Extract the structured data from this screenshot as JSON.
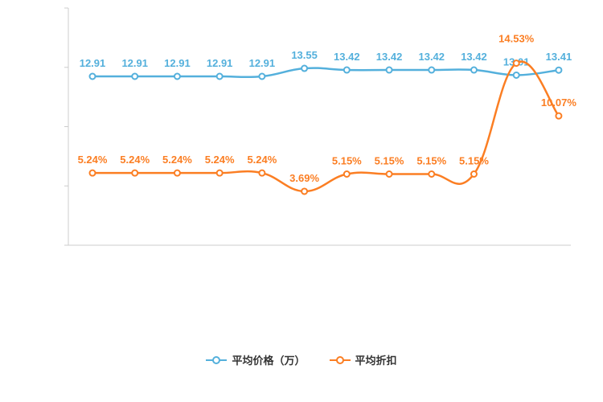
{
  "chart_data": {
    "type": "line",
    "title": "",
    "legend_position": "bottom",
    "grid": false,
    "x_axis_labels_visible": false,
    "axis_color": "#cccccc",
    "legend_text_color": "#333333",
    "series": [
      {
        "name": "平均价格（万）",
        "color": "#54b0dc",
        "marker": "empty-circle",
        "smooth": true,
        "values": [
          12.91,
          12.91,
          12.91,
          12.91,
          12.91,
          13.55,
          13.42,
          13.42,
          13.42,
          13.42,
          13.01,
          13.41
        ],
        "value_labels": [
          "12.91",
          "12.91",
          "12.91",
          "12.91",
          "12.91",
          "13.55",
          "13.42",
          "13.42",
          "13.42",
          "13.42",
          "13.01",
          "13.41"
        ]
      },
      {
        "name": "平均折扣",
        "color": "#fb7e23",
        "marker": "empty-circle",
        "smooth": true,
        "values": [
          5.24,
          5.24,
          5.24,
          5.24,
          5.24,
          3.69,
          5.15,
          5.15,
          5.15,
          5.15,
          14.53,
          10.07
        ],
        "value_labels": [
          "5.24%",
          "5.24%",
          "5.24%",
          "5.24%",
          "5.24%",
          "3.69%",
          "5.15%",
          "5.15%",
          "5.15%",
          "5.15%",
          "14.53%",
          "10.07%"
        ]
      }
    ]
  }
}
